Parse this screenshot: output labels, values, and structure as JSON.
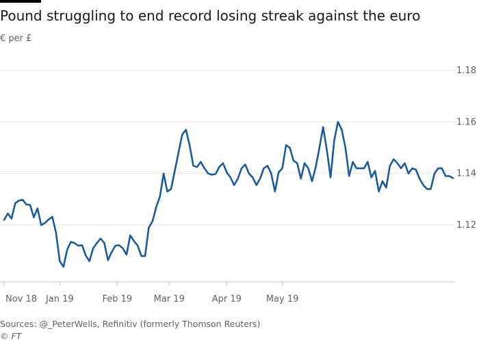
{
  "title": "Pound struggling to end record losing streak against the euro",
  "subtitle": "€ per £",
  "source": "Sources: @_PeterWells, Refinitiv (formerly Thomson Reuters)",
  "credit": "© FT",
  "colors": {
    "line": "#1a5b9e",
    "grid": "#e6e3df",
    "axis": "#c9c5c1",
    "text": "#66605c"
  },
  "chart_data": {
    "type": "line",
    "title": "Pound struggling to end record losing streak against the euro",
    "ylabel": "€ per £",
    "ylim": [
      1.098,
      1.185
    ],
    "y_ticks": [
      1.12,
      1.14,
      1.16,
      1.18
    ],
    "y_tick_labels": [
      "1.12",
      "1.14",
      "1.16",
      "1.18"
    ],
    "x_ticks": [
      0,
      30,
      61,
      89,
      120,
      150
    ],
    "x_tick_labels": [
      "Nov 18",
      "Jan 19",
      "Feb 19",
      "Mar 19",
      "Apr 19",
      "May 19"
    ],
    "grid": true,
    "series": [
      {
        "x": [
          0,
          2,
          4,
          6,
          8,
          10,
          12,
          14,
          16,
          18,
          20,
          22,
          24,
          26,
          28,
          30,
          32,
          34,
          36,
          38,
          40,
          42,
          44,
          46,
          48,
          50,
          52,
          54,
          56,
          58,
          60,
          62,
          64,
          66,
          68,
          70,
          72,
          74,
          76,
          78,
          80,
          82,
          84,
          86,
          88,
          90,
          92,
          94,
          96,
          98,
          100,
          102,
          104,
          106,
          108,
          110,
          112,
          114,
          116,
          118,
          120,
          122,
          124,
          126,
          128,
          130,
          132,
          134,
          136,
          138,
          140,
          142,
          144,
          146,
          148,
          150,
          152,
          154,
          156,
          158,
          160,
          162,
          164,
          166,
          168,
          170,
          172,
          174,
          176,
          178,
          180,
          182,
          184,
          186,
          188,
          190,
          192,
          194,
          196,
          198,
          200,
          202,
          204,
          206,
          208,
          210,
          212,
          214,
          216,
          218,
          220,
          222,
          224,
          226,
          228,
          230,
          232,
          234,
          236,
          238,
          240,
          242
        ],
        "values": [
          1.122,
          1.1245,
          1.1225,
          1.1285,
          1.1295,
          1.1298,
          1.128,
          1.1278,
          1.123,
          1.1265,
          1.12,
          1.1208,
          1.1222,
          1.1232,
          1.117,
          1.106,
          1.1038,
          1.1105,
          1.1135,
          1.113,
          1.112,
          1.1122,
          1.1082,
          1.106,
          1.111,
          1.113,
          1.1148,
          1.113,
          1.1064,
          1.1095,
          1.112,
          1.1122,
          1.111,
          1.1085,
          1.116,
          1.1138,
          1.112,
          1.108,
          1.108,
          1.119,
          1.1215,
          1.127,
          1.131,
          1.14,
          1.133,
          1.134,
          1.141,
          1.148,
          1.155,
          1.157,
          1.151,
          1.143,
          1.1425,
          1.1445,
          1.142,
          1.14,
          1.1395,
          1.1398,
          1.1425,
          1.144,
          1.1405,
          1.1385,
          1.1355,
          1.138,
          1.142,
          1.1435,
          1.14,
          1.1385,
          1.1355,
          1.138,
          1.142,
          1.143,
          1.14,
          1.133,
          1.1405,
          1.142,
          1.151,
          1.15,
          1.145,
          1.144,
          1.138,
          1.144,
          1.142,
          1.137,
          1.1425,
          1.15,
          1.158,
          1.149,
          1.1385,
          1.153,
          1.16,
          1.157,
          1.15,
          1.139,
          1.1445,
          1.142,
          1.142,
          1.142,
          1.1445,
          1.1385,
          1.141,
          1.133,
          1.137,
          1.1345,
          1.143,
          1.1455,
          1.144,
          1.142,
          1.144,
          1.14,
          1.142,
          1.1415,
          1.138,
          1.1355,
          1.134,
          1.134,
          1.14,
          1.142,
          1.142,
          1.139,
          1.139,
          1.1382
        ]
      }
    ]
  }
}
